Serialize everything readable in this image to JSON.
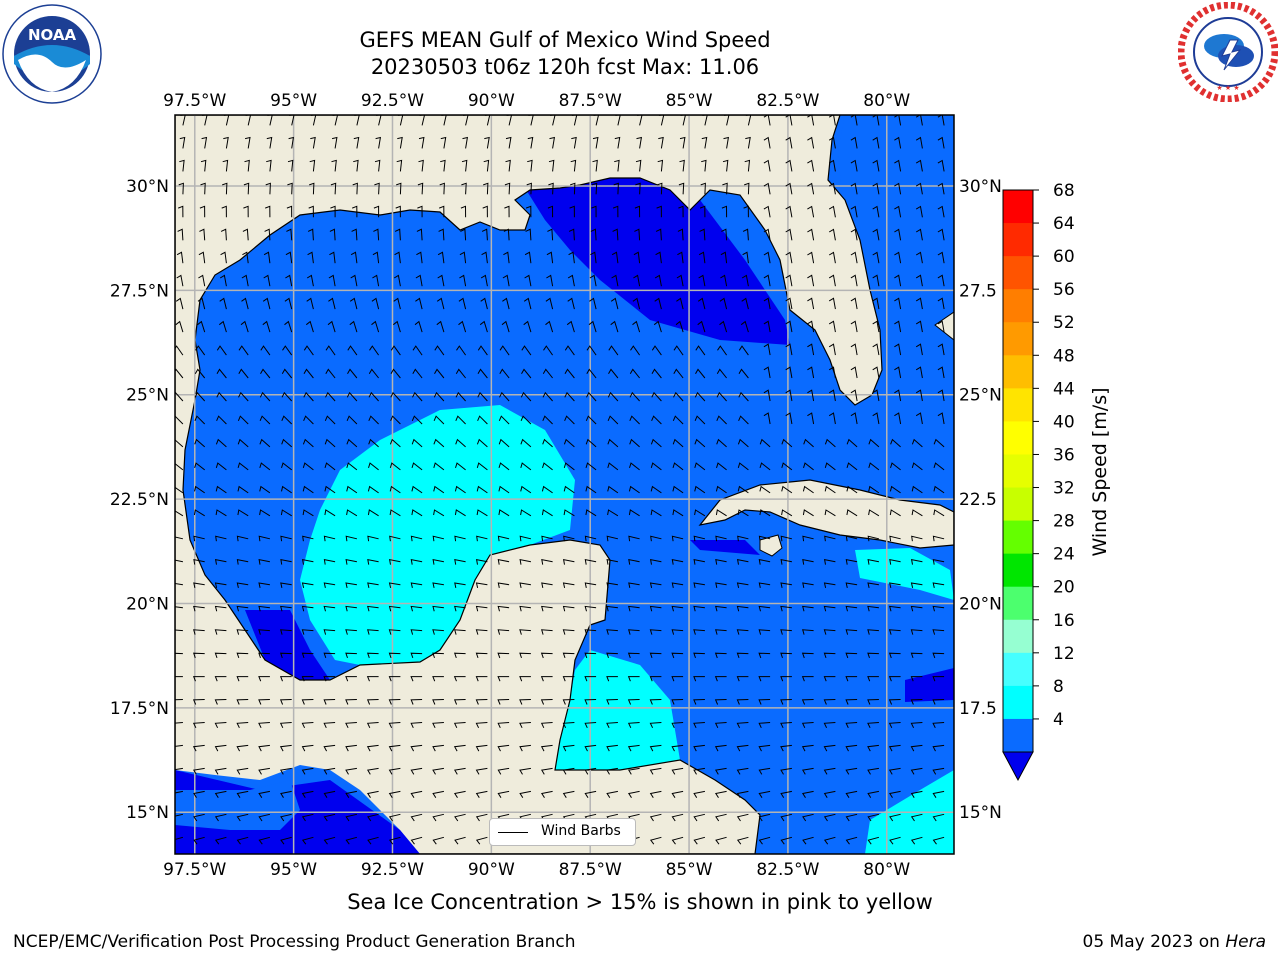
{
  "title_line1": "GEFS MEAN Gulf of Mexico Wind Speed",
  "title_line2": "20230503 t06z 120h fcst   Max: 11.06",
  "logos": {
    "left": {
      "name": "noaa-logo",
      "text": "NOAA",
      "ring_text": "NATIONAL OCEANIC AND ATMOSPHERIC ADMINISTRATION · U.S. DEPARTMENT OF COMMERCE"
    },
    "right": {
      "name": "nws-logo",
      "ring_text": "NATIONAL WEATHER SERVICE"
    }
  },
  "map": {
    "lon_range": [
      -98,
      -78.3
    ],
    "lat_range": [
      14,
      31.7
    ],
    "lon_ticks": [
      "97.5°W",
      "95°W",
      "92.5°W",
      "90°W",
      "87.5°W",
      "85°W",
      "82.5°W",
      "80°W"
    ],
    "lat_ticks_left": [
      "30°N",
      "27.5°N",
      "25°N",
      "22.5°N",
      "20°N",
      "17.5°N",
      "15°N"
    ],
    "lat_ticks_right": [
      "30°N",
      "27.5",
      "25°N",
      "22.5",
      "20°N",
      "17.5",
      "15°N"
    ],
    "colors": {
      "land": "#efecdc",
      "ocean_4_8": "#0a6bff",
      "ocean_lt4": "#0000ee",
      "ocean_8_12": "#00ffff",
      "grid": "#b4b4b4",
      "coast": "#000000",
      "barb": "#000000"
    },
    "legend_label": "Wind Barbs",
    "gridlines": true
  },
  "colorbar": {
    "label": "Wind Speed [m/s]",
    "ticks": [
      "68",
      "64",
      "60",
      "56",
      "52",
      "48",
      "44",
      "40",
      "36",
      "32",
      "28",
      "24",
      "20",
      "16",
      "12",
      "8",
      "4"
    ],
    "colors_top_to_bottom": [
      "#ff0000",
      "#ff2a00",
      "#ff5400",
      "#ff7e00",
      "#ff9a00",
      "#ffbe00",
      "#ffe400",
      "#ffff00",
      "#e6ff00",
      "#c8ff00",
      "#64ff00",
      "#00e600",
      "#4cff6e",
      "#96ffd2",
      "#46ffff",
      "#00ffff",
      "#0a6bff"
    ],
    "under_color": "#0000ee"
  },
  "caption": "Sea Ice Concentration > 15% is shown in pink to yellow",
  "footer_left": "NCEP/EMC/Verification Post Processing Product Generation Branch",
  "footer_right_prefix": "05 May 2023 on ",
  "footer_right_host": "Hera"
}
